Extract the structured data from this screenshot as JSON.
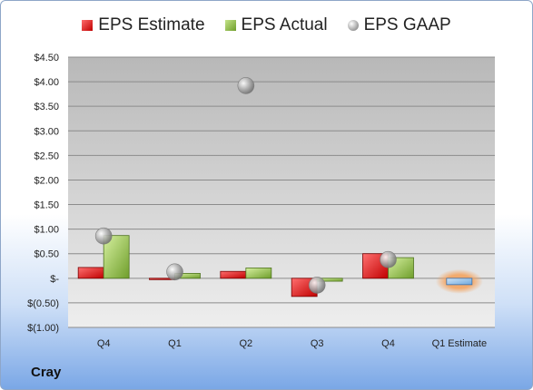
{
  "company": "Cray",
  "legend": {
    "estimate": "EPS Estimate",
    "actual": "EPS Actual",
    "gaap": "EPS GAAP"
  },
  "colors": {
    "estimate": "#c00000",
    "actual": "#8bbf3f",
    "gaap": "#a6a6a6",
    "future_estimate": "#6fa8dc",
    "future_glow": "#f4a460",
    "plot_bg_top": "#b8b8b8",
    "plot_bg_bottom": "#eeeeee"
  },
  "chart_data": {
    "type": "bar",
    "categories": [
      "Q4",
      "Q1",
      "Q2",
      "Q3",
      "Q4",
      "Q1 Estimate"
    ],
    "series": [
      {
        "name": "EPS Estimate",
        "values": [
          0.22,
          -0.01,
          0.14,
          -0.37,
          0.5,
          -0.13
        ]
      },
      {
        "name": "EPS Actual",
        "values": [
          0.87,
          0.1,
          0.21,
          -0.06,
          0.42,
          null
        ]
      },
      {
        "name": "EPS GAAP",
        "values": [
          0.86,
          0.13,
          3.92,
          -0.14,
          0.38,
          null
        ]
      }
    ],
    "ylim": [
      -1.0,
      4.5
    ],
    "yticks": [
      -1.0,
      -0.5,
      0,
      0.5,
      1.0,
      1.5,
      2.0,
      2.5,
      3.0,
      3.5,
      4.0,
      4.5
    ],
    "ytick_labels": [
      "$(1.00)",
      "$(0.50)",
      "$-",
      "$0.50",
      "$1.00",
      "$1.50",
      "$2.00",
      "$2.50",
      "$3.00",
      "$3.50",
      "$4.00",
      "$4.50"
    ],
    "grid": true,
    "legend_position": "top"
  }
}
